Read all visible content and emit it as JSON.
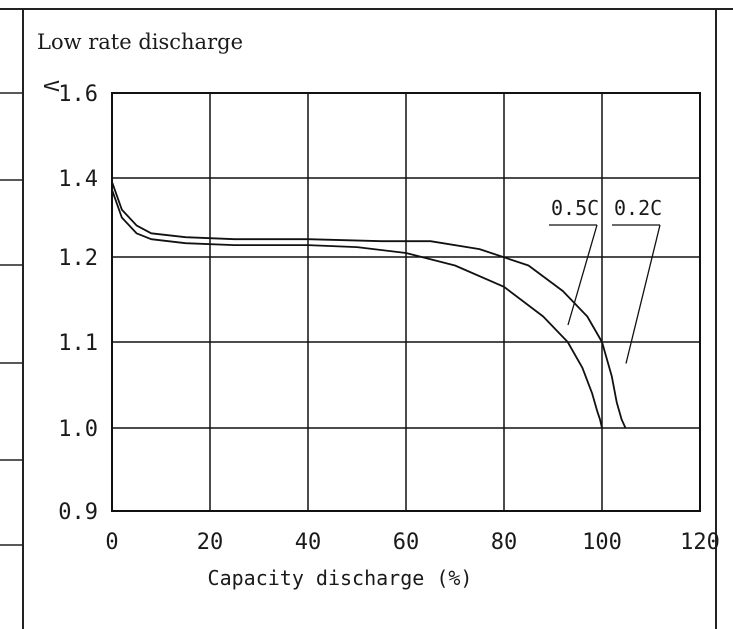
{
  "chart_data": {
    "type": "line",
    "title": "Low rate discharge",
    "xlabel": "Capacity discharge (%)",
    "ylabel": "V",
    "xlim": [
      0,
      120
    ],
    "y_ticks": [
      0.9,
      1.0,
      1.1,
      1.2,
      1.4,
      1.6
    ],
    "x_ticks": [
      0,
      20,
      40,
      60,
      80,
      100,
      120
    ],
    "x_tick_labels": [
      "0",
      "20",
      "40",
      "60",
      "80",
      "100",
      "120"
    ],
    "y_tick_labels": [
      "0.9",
      "1.0",
      "1.1",
      "1.2",
      "1.4",
      "1.6"
    ],
    "grid": true,
    "series": [
      {
        "name": "0.2C",
        "x": [
          0,
          2,
          5,
          8,
          15,
          25,
          40,
          55,
          65,
          75,
          85,
          92,
          97,
          100,
          102,
          103,
          104,
          104.8
        ],
        "y": [
          1.39,
          1.32,
          1.28,
          1.26,
          1.25,
          1.245,
          1.245,
          1.24,
          1.24,
          1.22,
          1.19,
          1.16,
          1.13,
          1.1,
          1.06,
          1.03,
          1.01,
          1.0
        ]
      },
      {
        "name": "0.5C",
        "x": [
          0,
          2,
          5,
          8,
          15,
          25,
          40,
          50,
          60,
          70,
          80,
          88,
          93,
          96,
          98,
          99,
          99.6,
          100
        ],
        "y": [
          1.37,
          1.3,
          1.26,
          1.245,
          1.235,
          1.23,
          1.23,
          1.225,
          1.21,
          1.19,
          1.165,
          1.13,
          1.1,
          1.07,
          1.04,
          1.02,
          1.01,
          1.0
        ]
      }
    ]
  }
}
